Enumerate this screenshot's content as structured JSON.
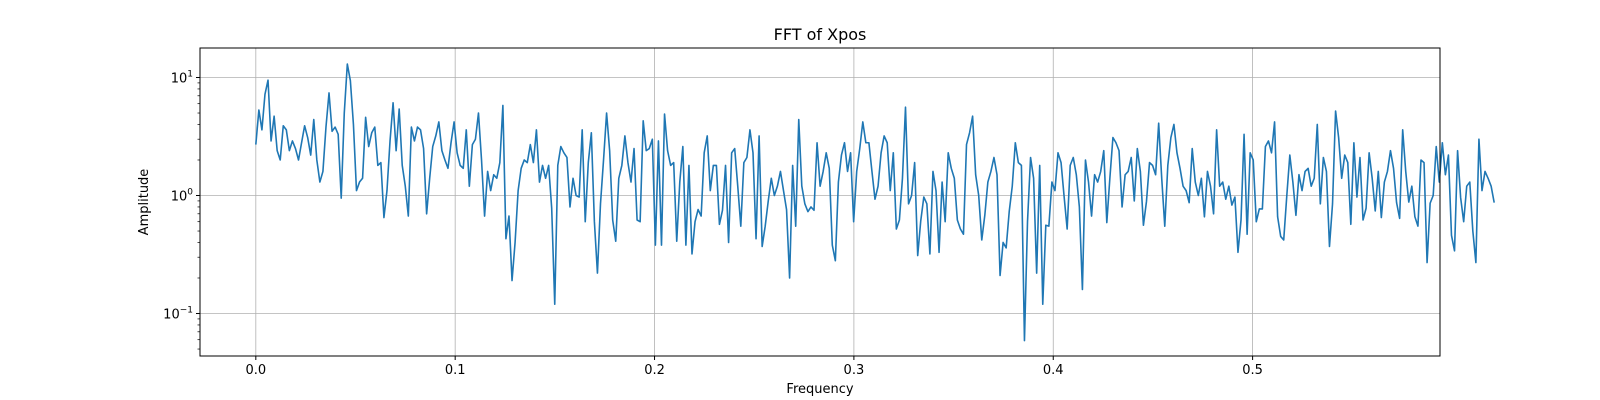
{
  "chart_data": {
    "type": "line",
    "title": "FFT of Xpos",
    "xlabel": "Frequency",
    "ylabel": "Amplitude",
    "xlim": [
      -0.028,
      0.594
    ],
    "ylim_log10": [
      -1.36,
      1.25
    ],
    "yscale": "log",
    "grid": true,
    "line_color": "#1f77b4",
    "x_ticks": [
      {
        "value": 0.0,
        "label": "0.0"
      },
      {
        "value": 0.1,
        "label": "0.1"
      },
      {
        "value": 0.2,
        "label": "0.2"
      },
      {
        "value": 0.3,
        "label": "0.3"
      },
      {
        "value": 0.4,
        "label": "0.4"
      },
      {
        "value": 0.5,
        "label": "0.5"
      }
    ],
    "y_ticks": [
      {
        "value": 10,
        "base": "10",
        "exp": "1"
      },
      {
        "value": 1,
        "base": "10",
        "exp": "0"
      },
      {
        "value": 0.1,
        "base": "10",
        "exp": "−1"
      }
    ],
    "x_step": 0.00153,
    "series": [
      {
        "values": [
          2.7,
          5.3,
          3.6,
          7.2,
          9.5,
          2.9,
          4.7,
          2.4,
          2.0,
          3.9,
          3.6,
          2.4,
          2.9,
          2.5,
          2.0,
          2.8,
          3.9,
          3.1,
          2.2,
          4.4,
          2.0,
          1.3,
          1.6,
          3.8,
          7.4,
          3.5,
          3.8,
          3.3,
          0.95,
          5.0,
          13.0,
          9.4,
          4.0,
          1.1,
          1.3,
          1.4,
          4.6,
          2.6,
          3.4,
          3.8,
          1.8,
          1.9,
          0.65,
          1.1,
          2.9,
          6.1,
          2.4,
          5.4,
          1.8,
          1.2,
          0.67,
          3.8,
          2.9,
          3.8,
          3.6,
          2.5,
          0.7,
          1.4,
          2.6,
          3.2,
          4.2,
          2.4,
          2.0,
          1.7,
          2.8,
          4.2,
          2.3,
          1.8,
          1.7,
          3.6,
          1.2,
          2.7,
          3.0,
          5.0,
          2.0,
          0.67,
          1.6,
          1.1,
          1.5,
          1.4,
          1.9,
          5.8,
          0.43,
          0.67,
          0.19,
          0.4,
          1.1,
          1.7,
          2.0,
          1.9,
          2.7,
          1.9,
          3.6,
          1.3,
          1.8,
          1.4,
          1.8,
          0.78,
          0.12,
          1.8,
          2.6,
          2.3,
          2.1,
          0.8,
          1.4,
          1.0,
          0.97,
          3.6,
          0.6,
          1.9,
          3.4,
          0.6,
          0.22,
          0.85,
          2.0,
          5.0,
          2.4,
          0.62,
          0.41,
          1.4,
          1.8,
          3.2,
          1.9,
          1.3,
          2.5,
          0.62,
          0.6,
          4.3,
          2.4,
          2.5,
          3.0,
          0.38,
          2.9,
          0.38,
          4.9,
          2.4,
          1.8,
          1.9,
          0.41,
          1.3,
          2.6,
          0.38,
          1.8,
          0.32,
          0.6,
          0.76,
          0.67,
          2.3,
          3.2,
          1.1,
          1.8,
          1.8,
          0.57,
          0.75,
          1.8,
          0.4,
          2.3,
          2.5,
          1.2,
          0.55,
          1.9,
          2.1,
          3.6,
          2.3,
          0.43,
          3.2,
          0.37,
          0.55,
          0.9,
          1.4,
          1.0,
          1.2,
          1.6,
          1.1,
          0.76,
          0.2,
          1.8,
          0.55,
          4.4,
          1.2,
          0.85,
          0.73,
          0.8,
          0.75,
          2.8,
          1.2,
          1.6,
          2.3,
          1.7,
          0.38,
          0.28,
          1.3,
          2.2,
          2.8,
          1.6,
          2.3,
          0.6,
          1.6,
          2.5,
          4.2,
          2.8,
          2.8,
          1.6,
          0.93,
          1.2,
          2.3,
          3.2,
          2.8,
          1.1,
          2.3,
          0.52,
          0.62,
          1.4,
          5.6,
          0.85,
          1.0,
          1.9,
          0.31,
          0.61,
          0.97,
          0.85,
          0.32,
          1.6,
          1.1,
          0.33,
          1.3,
          0.6,
          2.3,
          1.7,
          1.4,
          0.62,
          0.52,
          0.47,
          2.7,
          3.4,
          4.7,
          1.5,
          1.0,
          0.42,
          0.68,
          1.3,
          1.6,
          2.1,
          1.5,
          0.21,
          0.4,
          0.36,
          0.73,
          1.2,
          2.8,
          1.9,
          1.8,
          0.059,
          0.6,
          2.1,
          1.4,
          0.22,
          1.8,
          0.12,
          0.56,
          0.55,
          1.3,
          1.1,
          2.3,
          1.9,
          0.98,
          0.52,
          1.8,
          2.1,
          1.5,
          0.8,
          0.16,
          2.0,
          1.3,
          0.67,
          1.5,
          1.3,
          1.6,
          2.4,
          0.59,
          1.4,
          3.1,
          2.8,
          2.4,
          0.8,
          1.5,
          1.6,
          2.1,
          0.9,
          2.5,
          1.6,
          0.56,
          0.89,
          1.9,
          1.8,
          1.5,
          4.1,
          1.4,
          0.55,
          1.8,
          3.1,
          4.0,
          2.3,
          1.7,
          1.2,
          1.1,
          0.87,
          2.5,
          1.3,
          1.0,
          1.4,
          0.66,
          1.6,
          1.2,
          0.7,
          3.6,
          1.2,
          1.3,
          0.93,
          1.2,
          0.83,
          0.97,
          0.33,
          0.62,
          3.3,
          0.47,
          2.3,
          2.0,
          0.6,
          0.77,
          0.77,
          2.6,
          2.9,
          2.3,
          4.2,
          0.66,
          0.45,
          0.42,
          0.99,
          2.2,
          1.3,
          0.68,
          1.5,
          1.1,
          1.6,
          1.7,
          1.2,
          1.4,
          4.0,
          0.85,
          2.1,
          1.6,
          0.37,
          0.85,
          5.2,
          3.1,
          1.4,
          2.2,
          1.9,
          0.57,
          2.8,
          0.97,
          2.1,
          0.62,
          0.78,
          2.3,
          1.4,
          0.74,
          1.6,
          0.65,
          1.3,
          1.6,
          2.4,
          1.7,
          0.87,
          0.64,
          3.6,
          1.6,
          0.88,
          1.2,
          0.66,
          0.55,
          2.0,
          1.9,
          0.27,
          0.86,
          1.0,
          2.6,
          1.3,
          2.8,
          1.5,
          2.2,
          0.46,
          0.34,
          2.4,
          0.96,
          0.6,
          1.2,
          1.3,
          0.5,
          0.27,
          3.0,
          1.1,
          1.6,
          1.4,
          1.2,
          0.87
        ]
      }
    ]
  }
}
